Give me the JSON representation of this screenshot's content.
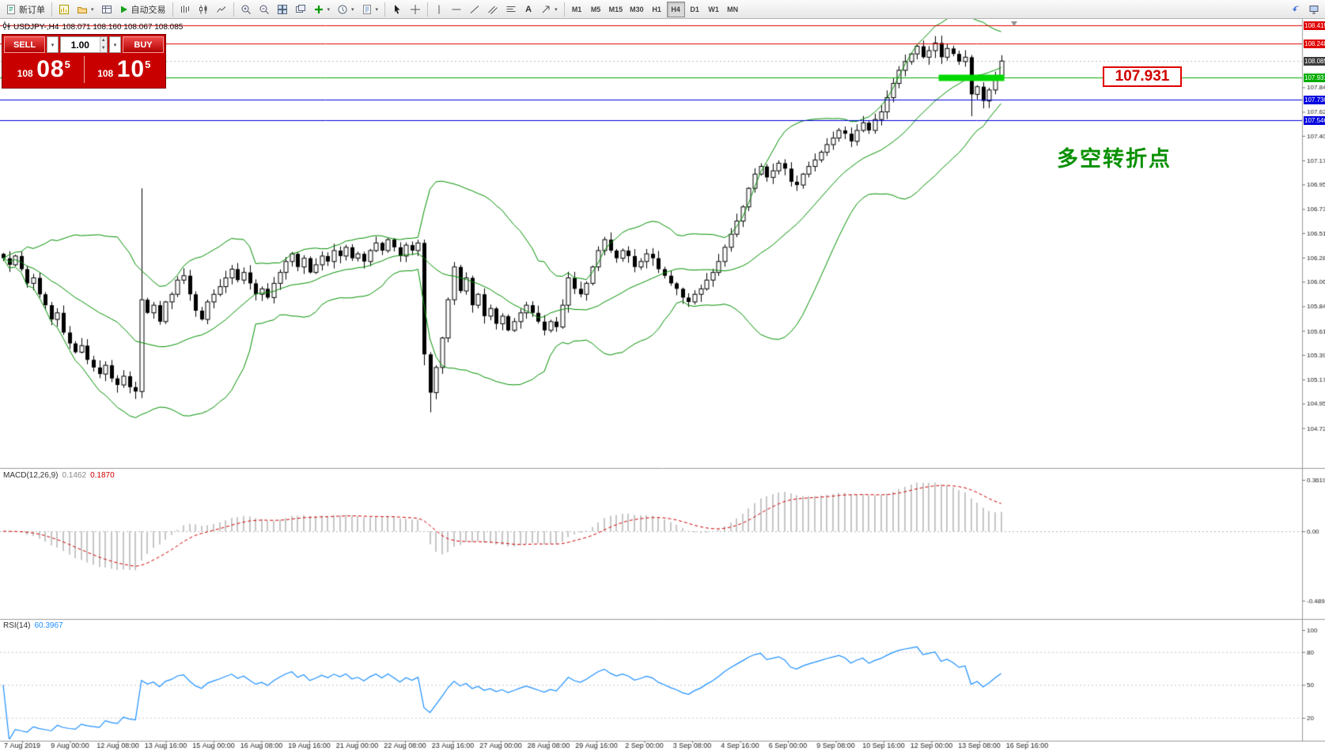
{
  "toolbar": {
    "new_order": "新订单",
    "autotrading": "自动交易",
    "text_tool": "A",
    "timeframes": [
      "M1",
      "M5",
      "M15",
      "M30",
      "H1",
      "H4",
      "D1",
      "W1",
      "MN"
    ],
    "active_timeframe": "H4"
  },
  "chart_header": {
    "symbol_period": "USDJPY-,H4",
    "ohlc_values": "108.071 108.160 108.067 108.085"
  },
  "trade_panel": {
    "sell_label": "SELL",
    "buy_label": "BUY",
    "volume": "1.00",
    "sell_price": {
      "prefix": "108",
      "big": "08",
      "sup": "5"
    },
    "buy_price": {
      "prefix": "108",
      "big": "10",
      "sup": "5"
    }
  },
  "annotations": {
    "turning_point_text": "多空转折点",
    "price_callout": "107.931"
  },
  "indicator_labels": {
    "macd_name": "MACD(12,26,9)",
    "macd_main_value": "0.1462",
    "macd_signal_value": "0.1870",
    "rsi_name": "RSI(14)",
    "rsi_value": "60.3967"
  },
  "axes": {
    "price_scale": [
      "107.845",
      "107.620",
      "107.400",
      "107.175",
      "106.955",
      "106.730",
      "106.510",
      "106.285",
      "106.065",
      "105.840",
      "105.615",
      "105.395",
      "105.170",
      "104.950",
      "104.725"
    ],
    "price_tags": [
      {
        "text": "108.415",
        "bg": "#e00000"
      },
      {
        "text": "108.248",
        "bg": "#e00000"
      },
      {
        "text": "108.085",
        "bg": "#3c3c3c"
      },
      {
        "text": "107.931",
        "bg": "#00ad00"
      },
      {
        "text": "107.730",
        "bg": "#0000dd"
      },
      {
        "text": "107.546",
        "bg": "#0000dd"
      }
    ],
    "macd_scale": [
      "0.3619",
      "0.00",
      "-0.4895"
    ],
    "rsi_scale": [
      "100",
      "80",
      "50",
      "20"
    ],
    "time_labels": [
      "7 Aug 2019",
      "9 Aug 00:00",
      "12 Aug 08:00",
      "13 Aug 16:00",
      "15 Aug 00:00",
      "16 Aug 08:00",
      "19 Aug 16:00",
      "21 Aug 00:00",
      "22 Aug 08:00",
      "23 Aug 16:00",
      "27 Aug 00:00",
      "28 Aug 08:00",
      "29 Aug 16:00",
      "2 Sep 00:00",
      "3 Sep 08:00",
      "4 Sep 16:00",
      "6 Sep 00:00",
      "9 Sep 08:00",
      "10 Sep 16:00",
      "12 Sep 00:00",
      "13 Sep 08:00",
      "16 Sep 16:00"
    ]
  },
  "chart_data": {
    "type": "candlestick",
    "symbol": "USDJPY",
    "timeframe": "H4",
    "visible_price_range": [
      104.7,
      108.47
    ],
    "closes": [
      106.28,
      106.22,
      106.3,
      106.18,
      106.05,
      106.1,
      105.95,
      105.85,
      105.72,
      105.78,
      105.6,
      105.5,
      105.42,
      105.48,
      105.35,
      105.28,
      105.22,
      105.3,
      105.18,
      105.12,
      105.2,
      105.1,
      105.06,
      105.9,
      105.78,
      105.85,
      105.7,
      105.88,
      105.95,
      106.08,
      106.12,
      105.95,
      105.8,
      105.72,
      105.88,
      105.95,
      106.02,
      106.1,
      106.18,
      106.08,
      106.15,
      106.05,
      105.95,
      106.0,
      105.92,
      106.05,
      106.15,
      106.25,
      106.32,
      106.2,
      106.28,
      106.15,
      106.22,
      106.3,
      106.25,
      106.35,
      106.3,
      106.38,
      106.28,
      106.32,
      106.25,
      106.35,
      106.42,
      106.35,
      106.45,
      106.38,
      106.3,
      106.4,
      106.35,
      106.42,
      105.4,
      105.05,
      105.28,
      105.55,
      105.9,
      106.2,
      105.98,
      106.1,
      105.85,
      105.95,
      105.75,
      105.82,
      105.68,
      105.75,
      105.62,
      105.7,
      105.78,
      105.85,
      105.78,
      105.7,
      105.62,
      105.7,
      105.65,
      105.85,
      106.1,
      106.0,
      105.95,
      106.05,
      106.2,
      106.35,
      106.45,
      106.35,
      106.28,
      106.35,
      106.3,
      106.2,
      106.25,
      106.32,
      106.28,
      106.18,
      106.12,
      106.05,
      106.0,
      105.92,
      105.88,
      105.95,
      106.0,
      106.08,
      106.15,
      106.25,
      106.38,
      106.5,
      106.62,
      106.75,
      106.92,
      107.05,
      107.12,
      107.02,
      107.08,
      107.15,
      107.1,
      106.98,
      106.95,
      107.05,
      107.12,
      107.18,
      107.25,
      107.32,
      107.38,
      107.45,
      107.42,
      107.35,
      107.45,
      107.52,
      107.45,
      107.55,
      107.62,
      107.75,
      107.88,
      108.0,
      108.08,
      108.15,
      108.22,
      108.12,
      108.18,
      108.25,
      108.12,
      108.2,
      108.15,
      108.08,
      108.12,
      107.78,
      107.85,
      107.72,
      107.82,
      107.95,
      108.085
    ],
    "wick_overrides": {
      "23": [
        106.92,
        105.0
      ],
      "70": [
        106.45,
        105.3
      ],
      "71": [
        105.42,
        104.87
      ],
      "161": [
        108.14,
        107.58
      ]
    },
    "hlines": [
      {
        "price": 108.415,
        "color": "#e00000"
      },
      {
        "price": 108.248,
        "color": "#e00000"
      },
      {
        "price": 107.931,
        "color": "#00ad00"
      },
      {
        "price": 107.73,
        "color": "#0000dd"
      },
      {
        "price": 107.546,
        "color": "#0000dd"
      }
    ],
    "bid_line": {
      "price": 108.085,
      "color": "#b8b8b8"
    },
    "highlight_segment": {
      "price": 107.931,
      "from_bar": 156,
      "to_bar": 166,
      "color": "#00d800"
    },
    "indicators": {
      "bollinger": {
        "period": 20,
        "deviation": 2,
        "color": "#009000"
      },
      "macd": {
        "fast": 12,
        "slow": 26,
        "signal": 9,
        "hist_color": "#c6c6c6",
        "signal_color": "#d00000"
      },
      "rsi": {
        "period": 14,
        "color": "#1e90ff"
      }
    }
  }
}
